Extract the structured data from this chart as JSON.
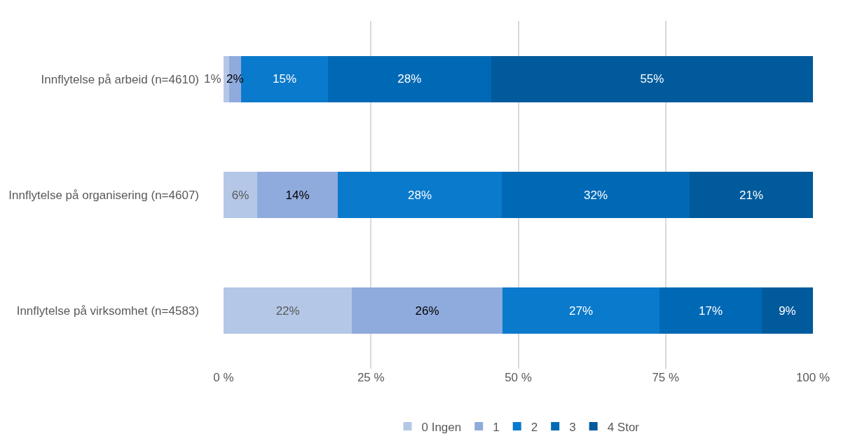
{
  "chart_data": {
    "type": "bar",
    "orientation": "horizontal",
    "stacked": true,
    "categories": [
      "Innflytelse på arbeid (n=4610)",
      "Innflytelse på organisering (n=4607)",
      "Innflytelse på virksomhet (n=4583)"
    ],
    "series": [
      {
        "name": "0 Ingen",
        "color": "#b4c7e7",
        "values": [
          1,
          5.7,
          21.8
        ],
        "value_labels": [
          "1%",
          "6%",
          "22%"
        ]
      },
      {
        "name": "1",
        "color": "#8faadc",
        "values": [
          2,
          13.7,
          25.5
        ],
        "value_labels": [
          "2%",
          "14%",
          "26%"
        ]
      },
      {
        "name": "2",
        "color": "#0a7acc",
        "values": [
          14.7,
          27.8,
          26.7
        ],
        "value_labels": [
          "15%",
          "28%",
          "27%"
        ]
      },
      {
        "name": "3",
        "color": "#0069b5",
        "values": [
          27.7,
          31.9,
          17.3
        ],
        "value_labels": [
          "28%",
          "32%",
          "17%"
        ]
      },
      {
        "name": "4 Stor",
        "color": "#005a9c",
        "values": [
          54.6,
          20.9,
          8.7
        ],
        "value_labels": [
          "55%",
          "21%",
          "9%"
        ]
      }
    ],
    "xlim": [
      0,
      100
    ],
    "xticks": [
      {
        "value": 0,
        "label": "0 %"
      },
      {
        "value": 25,
        "label": "25 %"
      },
      {
        "value": 50,
        "label": "50 %"
      },
      {
        "value": 75,
        "label": "75 %"
      },
      {
        "value": 100,
        "label": "100 %"
      }
    ],
    "grid": "x",
    "legend": "bottom"
  }
}
